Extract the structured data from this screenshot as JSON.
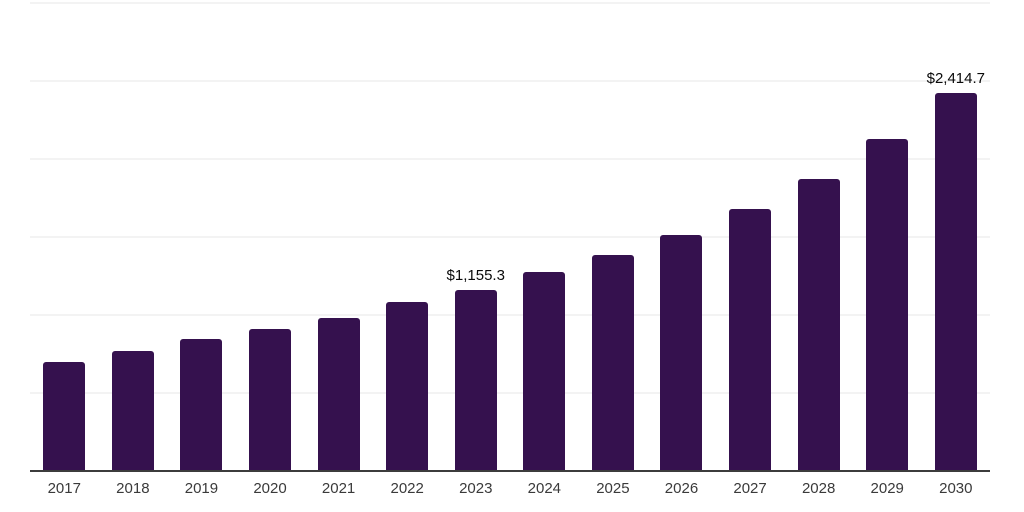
{
  "chart_data": {
    "type": "bar",
    "title": "",
    "xlabel": "",
    "ylabel": "",
    "categories": [
      "2017",
      "2018",
      "2019",
      "2020",
      "2021",
      "2022",
      "2023",
      "2024",
      "2025",
      "2026",
      "2027",
      "2028",
      "2029",
      "2030"
    ],
    "values": [
      695,
      760,
      840,
      905,
      975,
      1075,
      1155.3,
      1270,
      1380,
      1505,
      1670,
      1865,
      2120,
      2414.7
    ],
    "point_labels": [
      "",
      "",
      "",
      "",
      "",
      "",
      "$1,155.3",
      "",
      "",
      "",
      "",
      "",
      "",
      "$2,414.7"
    ],
    "ylim": [
      0,
      3000
    ],
    "gridline_step": 500,
    "grid": true,
    "legend_position": "none",
    "colors": {
      "bar": "#35114E",
      "axis_line": "#3c3c3c",
      "gridline": "#f3f3f3",
      "tick_label": "#3a3a3a",
      "data_label": "#0a0a0a",
      "background": "#ffffff"
    }
  }
}
